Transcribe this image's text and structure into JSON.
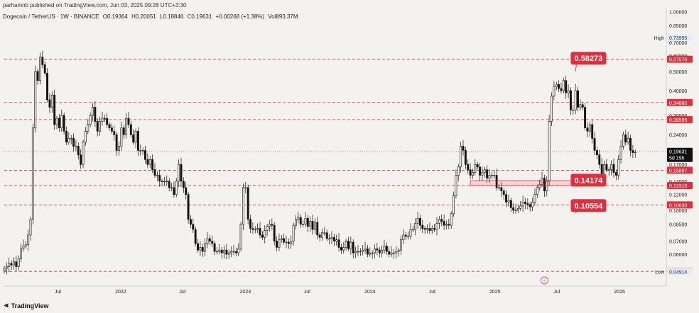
{
  "header": {
    "published": "parhamnb published on TradingView.com, Jun 03, 2025 09:28 UTC+3:30",
    "symbol": "Dogecoin / TetherUS · 1W · BINANCE",
    "ohlc": {
      "O": "O0.19364",
      "H": "H0.20051",
      "L": "L0.18846",
      "C": "C0.19631",
      "chg": "+0.00268 (+1.38%)",
      "vol": "Vol893.37M"
    }
  },
  "footer": {
    "logo_text": "TradingView"
  },
  "chart_data": {
    "type": "candlestick",
    "y_scale": "log",
    "ylim": [
      0.0415,
      1.02
    ],
    "xlim": [
      "2021-01-25",
      "2026-05-18"
    ],
    "y_ticks": [
      "1.00000",
      "0.85000",
      "0.70000",
      "0.60000",
      "0.50000",
      "0.40000",
      "0.30000",
      "0.24000",
      "0.20000",
      "0.17000",
      "0.14000",
      "0.12000",
      "0.10000",
      "0.08500",
      "0.07000",
      "0.06000",
      "0.05000"
    ],
    "x_ticks": [
      "Jul",
      "2022",
      "Jul",
      "2023",
      "Jul",
      "2024",
      "Jul",
      "2025",
      "Jul",
      "2026"
    ],
    "x_tick_dates": [
      "2021-07-01",
      "2022-01-01",
      "2022-07-01",
      "2023-01-01",
      "2023-07-01",
      "2024-01-01",
      "2024-07-01",
      "2025-01-01",
      "2025-07-01",
      "2026-01-01"
    ],
    "high_label": "High",
    "high_value": "0.73995",
    "low_label": "Low",
    "low_value": "0.04914",
    "current_price": "0.19631",
    "countdown": "5d 19h",
    "levels": [
      "0.57570",
      "0.34860",
      "0.28595",
      "0.15897",
      "0.13310",
      "0.10630",
      "0.04924"
    ],
    "callouts": [
      {
        "text": "0.58273",
        "price": 0.58273
      },
      {
        "text": "0.14174",
        "price": 0.14174
      },
      {
        "text": "0.10554",
        "price": 0.10554
      }
    ],
    "zone": {
      "top": 0.141,
      "bottom": 0.133
    },
    "up_color": "#111111",
    "down_color": "#111111",
    "level_color": "#e0303e",
    "closes": [
      0.051,
      0.052,
      0.054,
      0.053,
      0.055,
      0.052,
      0.057,
      0.064,
      0.066,
      0.067,
      0.075,
      0.09,
      0.26,
      0.5,
      0.45,
      0.59,
      0.54,
      0.49,
      0.36,
      0.33,
      0.38,
      0.27,
      0.29,
      0.26,
      0.3,
      0.25,
      0.22,
      0.23,
      0.23,
      0.21,
      0.21,
      0.19,
      0.17,
      0.22,
      0.25,
      0.27,
      0.3,
      0.33,
      0.28,
      0.25,
      0.28,
      0.29,
      0.29,
      0.27,
      0.26,
      0.25,
      0.24,
      0.2,
      0.21,
      0.26,
      0.24,
      0.29,
      0.27,
      0.24,
      0.22,
      0.25,
      0.2,
      0.2,
      0.2,
      0.18,
      0.17,
      0.18,
      0.16,
      0.15,
      0.15,
      0.14,
      0.14,
      0.14,
      0.14,
      0.13,
      0.13,
      0.12,
      0.14,
      0.17,
      0.14,
      0.13,
      0.12,
      0.09,
      0.085,
      0.08,
      0.068,
      0.063,
      0.065,
      0.062,
      0.068,
      0.072,
      0.07,
      0.068,
      0.062,
      0.062,
      0.063,
      0.061,
      0.063,
      0.06,
      0.061,
      0.062,
      0.062,
      0.061,
      0.064,
      0.085,
      0.13,
      0.13,
      0.09,
      0.081,
      0.08,
      0.08,
      0.081,
      0.075,
      0.073,
      0.079,
      0.083,
      0.085,
      0.084,
      0.07,
      0.065,
      0.071,
      0.072,
      0.069,
      0.069,
      0.068,
      0.07,
      0.084,
      0.09,
      0.092,
      0.085,
      0.085,
      0.091,
      0.083,
      0.088,
      0.08,
      0.087,
      0.075,
      0.073,
      0.077,
      0.077,
      0.072,
      0.072,
      0.073,
      0.07,
      0.071,
      0.065,
      0.063,
      0.065,
      0.07,
      0.064,
      0.069,
      0.061,
      0.062,
      0.062,
      0.062,
      0.063,
      0.064,
      0.06,
      0.061,
      0.061,
      0.064,
      0.063,
      0.061,
      0.063,
      0.066,
      0.062,
      0.06,
      0.061,
      0.061,
      0.062,
      0.063,
      0.071,
      0.075,
      0.074,
      0.074,
      0.08,
      0.08,
      0.086,
      0.091,
      0.084,
      0.081,
      0.08,
      0.081,
      0.079,
      0.081,
      0.08,
      0.086,
      0.09,
      0.088,
      0.084,
      0.085,
      0.084,
      0.096,
      0.118,
      0.15,
      0.165,
      0.21,
      0.2,
      0.17,
      0.16,
      0.15,
      0.155,
      0.17,
      0.165,
      0.15,
      0.155,
      0.16,
      0.145,
      0.15,
      0.15,
      0.15,
      0.13,
      0.13,
      0.125,
      0.12,
      0.11,
      0.112,
      0.103,
      0.1,
      0.1,
      0.102,
      0.105,
      0.11,
      0.108,
      0.107,
      0.104,
      0.11,
      0.12,
      0.13,
      0.135,
      0.145,
      0.125,
      0.14,
      0.28,
      0.375,
      0.42,
      0.43,
      0.41,
      0.4,
      0.45,
      0.39,
      0.4,
      0.32,
      0.32,
      0.4,
      0.33,
      0.34,
      0.33,
      0.26,
      0.25,
      0.27,
      0.23,
      0.2,
      0.19,
      0.17,
      0.15,
      0.17,
      0.16,
      0.16,
      0.17,
      0.155,
      0.15,
      0.18,
      0.21,
      0.24,
      0.22,
      0.23,
      0.2,
      0.195,
      0.196
    ]
  }
}
